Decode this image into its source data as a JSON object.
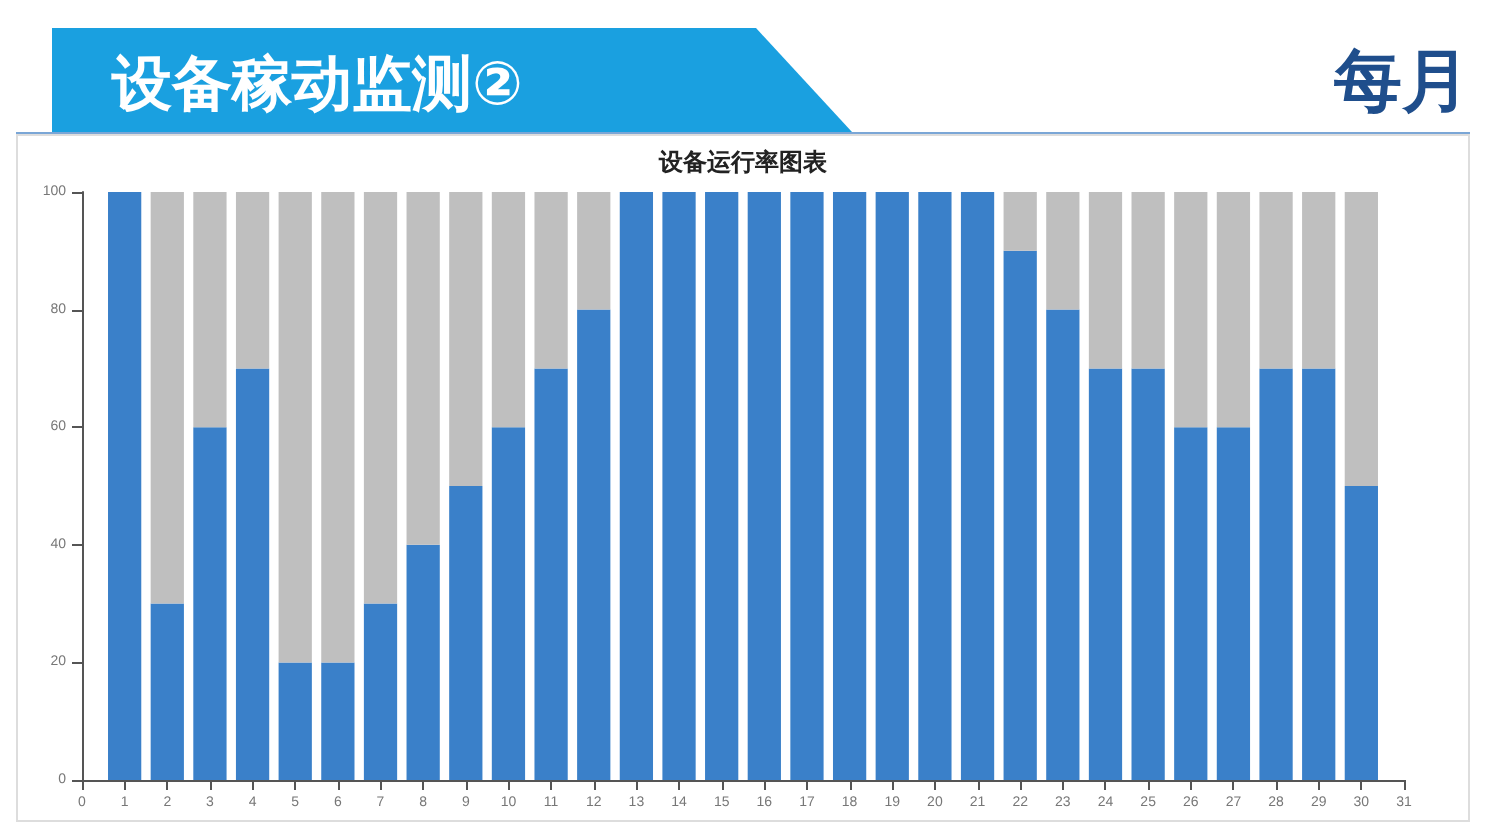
{
  "chart_data": {
    "type": "bar",
    "title": "设备稼动监测②",
    "subtitle": "设备运行率图表",
    "annotations": [
      "每月"
    ],
    "x": [
      1,
      2,
      3,
      4,
      5,
      6,
      7,
      8,
      9,
      10,
      11,
      12,
      13,
      14,
      15,
      16,
      17,
      18,
      19,
      20,
      21,
      22,
      23,
      24,
      25,
      26,
      27,
      28,
      29,
      30
    ],
    "series": [
      {
        "color": "#3a80c9",
        "values": [
          100,
          30,
          60,
          70,
          20,
          20,
          30,
          40,
          50,
          60,
          70,
          80,
          100,
          100,
          100,
          100,
          100,
          100,
          100,
          100,
          100,
          90,
          80,
          70,
          70,
          60,
          60,
          70,
          70,
          50
        ]
      },
      {
        "color": "#bfbfbf",
        "values": [
          0,
          70,
          40,
          30,
          80,
          80,
          70,
          60,
          50,
          40,
          30,
          20,
          0,
          0,
          0,
          0,
          0,
          0,
          0,
          0,
          0,
          10,
          20,
          30,
          30,
          40,
          40,
          30,
          30,
          50
        ]
      }
    ],
    "stacked": true,
    "xlim": [
      0,
      31
    ],
    "xticks": [
      0,
      1,
      2,
      3,
      4,
      5,
      6,
      7,
      8,
      9,
      10,
      11,
      12,
      13,
      14,
      15,
      16,
      17,
      18,
      19,
      20,
      21,
      22,
      23,
      24,
      25,
      26,
      27,
      28,
      29,
      30,
      31
    ],
    "ylim": [
      0,
      100
    ],
    "yticks": [
      0,
      20,
      40,
      60,
      80,
      100
    ]
  }
}
